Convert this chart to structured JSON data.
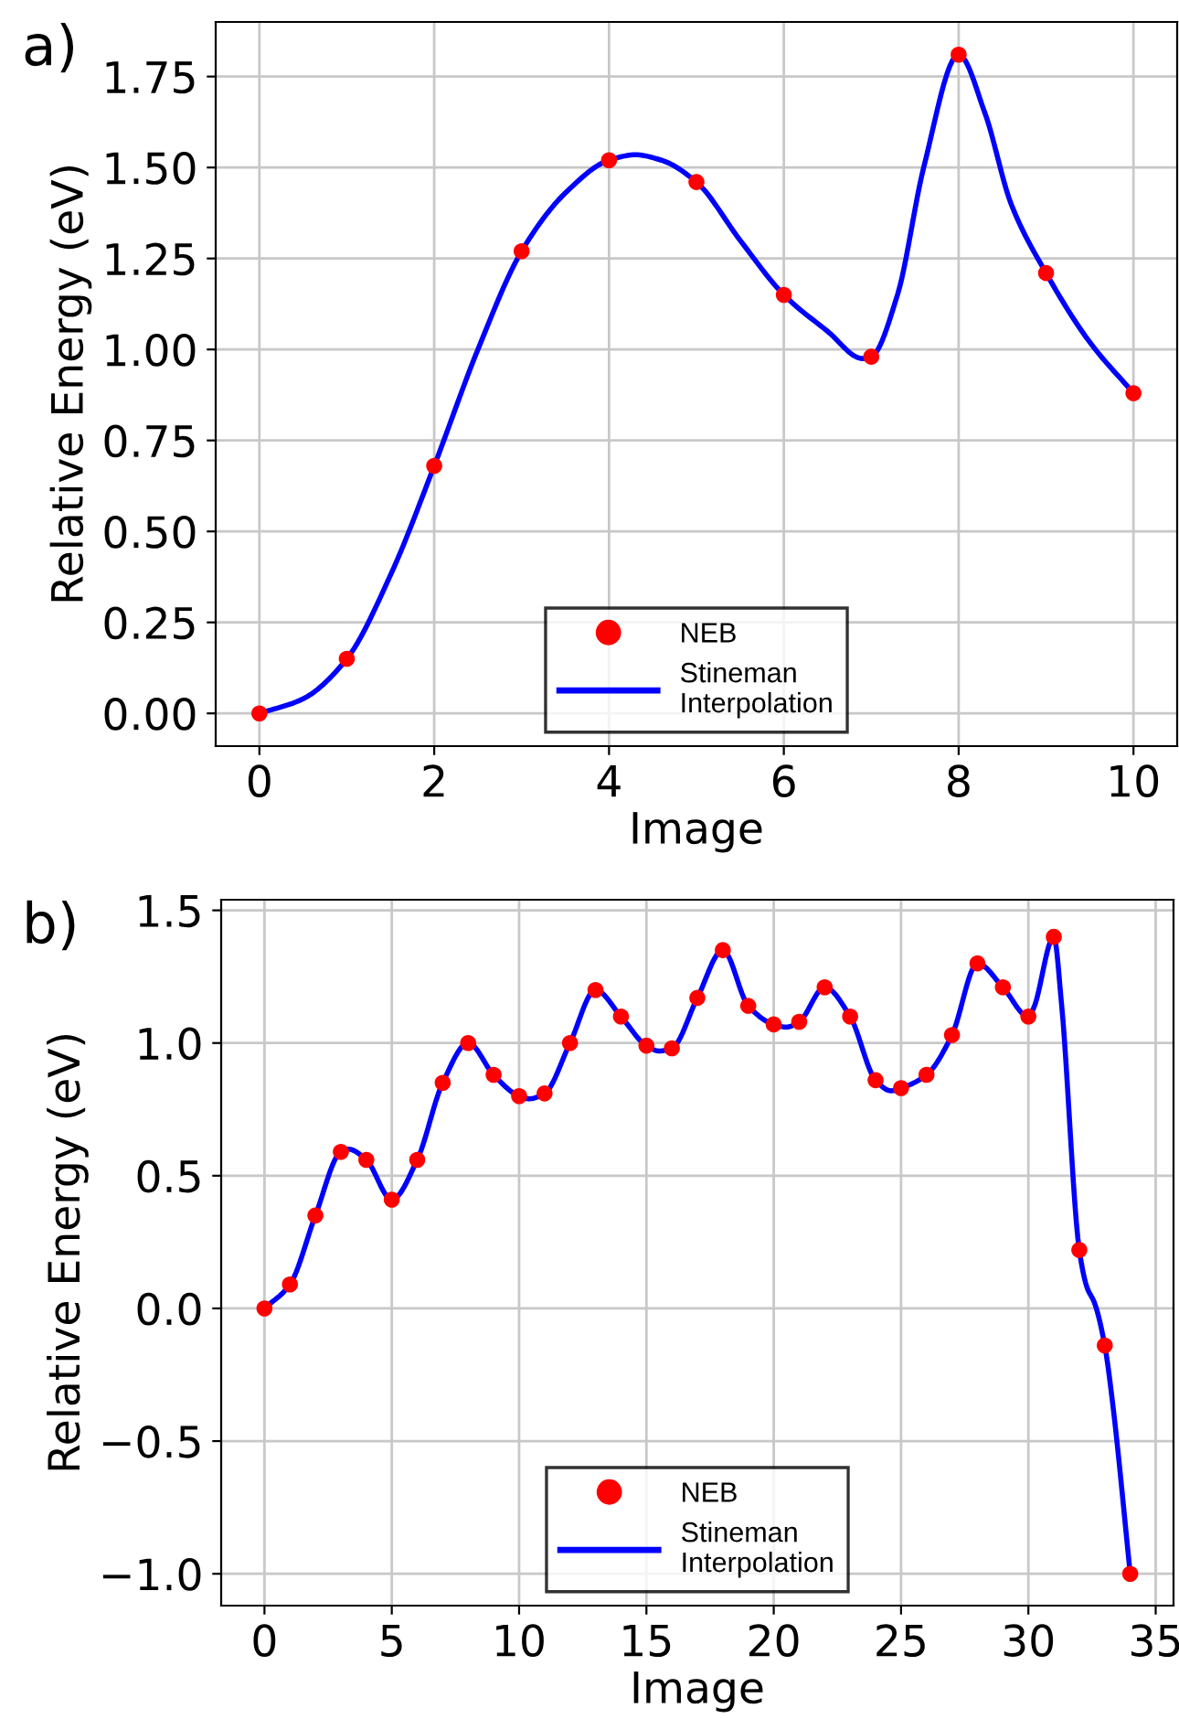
{
  "chart_data": [
    {
      "type": "scatter",
      "annotations": [
        "a)"
      ],
      "xlabel": "Image",
      "ylabel": "Relative Energy (eV)",
      "xlim": [
        -0.5,
        10.5
      ],
      "ylim": [
        -0.09,
        1.9
      ],
      "xticks": [
        0,
        2,
        4,
        6,
        8,
        10
      ],
      "yticks": [
        {
          "value": 0,
          "label": "0.00"
        },
        {
          "value": 0.25,
          "label": "0.25"
        },
        {
          "value": 0.5,
          "label": "0.50"
        },
        {
          "value": 0.75,
          "label": "0.75"
        },
        {
          "value": 1,
          "label": "1.00"
        },
        {
          "value": 1.25,
          "label": "1.25"
        },
        {
          "value": 1.5,
          "label": "1.50"
        },
        {
          "value": 1.75,
          "label": "1.75"
        }
      ],
      "grid": true,
      "legend": "bottom",
      "series": [
        {
          "name": "NEB",
          "marker": "circle",
          "color": "#ff0000",
          "x": [
            0,
            1,
            2,
            3,
            4,
            5,
            6,
            7,
            8,
            9,
            10
          ],
          "values": [
            0,
            0.15,
            0.68,
            1.27,
            1.52,
            1.46,
            1.15,
            0.98,
            1.81,
            1.21,
            0.88
          ]
        },
        {
          "name": "Stineman\nInterpolation",
          "type": "line",
          "color": "#0000ff",
          "line_style": "solid",
          "x": [
            0,
            0.5,
            1,
            1.5,
            2,
            2.5,
            3,
            3.5,
            4,
            4.3,
            4.6,
            5,
            5.5,
            6,
            6.5,
            6.9,
            7,
            7.3,
            7.6,
            8,
            8.3,
            8.6,
            9,
            9.5,
            10
          ],
          "values": [
            0,
            0.04,
            0.15,
            0.38,
            0.68,
            1.0,
            1.27,
            1.43,
            1.52,
            1.535,
            1.52,
            1.46,
            1.3,
            1.15,
            1.05,
            0.975,
            0.98,
            1.15,
            1.5,
            1.81,
            1.65,
            1.4,
            1.21,
            1.02,
            0.88
          ]
        }
      ]
    },
    {
      "type": "scatter",
      "annotations": [
        "b)"
      ],
      "xlabel": "Image",
      "ylabel": "Relative Energy (eV)",
      "xlim": [
        -1.7,
        35.7
      ],
      "ylim": [
        -1.12,
        1.54
      ],
      "xticks": [
        0,
        5,
        10,
        15,
        20,
        25,
        30,
        35
      ],
      "yticks": [
        {
          "value": -1,
          "label": "−1.0"
        },
        {
          "value": -0.5,
          "label": "−0.5"
        },
        {
          "value": 0,
          "label": "0.0"
        },
        {
          "value": 0.5,
          "label": "0.5"
        },
        {
          "value": 1,
          "label": "1.0"
        },
        {
          "value": 1.5,
          "label": "1.5"
        }
      ],
      "grid": true,
      "legend": "bottom",
      "series": [
        {
          "name": "NEB",
          "marker": "circle",
          "color": "#ff0000",
          "x": [
            0,
            1,
            2,
            3,
            4,
            5,
            6,
            7,
            8,
            9,
            10,
            11,
            12,
            13,
            14,
            15,
            16,
            17,
            18,
            19,
            20,
            21,
            22,
            23,
            24,
            25,
            26,
            27,
            28,
            29,
            30,
            31,
            32,
            33,
            34
          ],
          "values": [
            0,
            0.09,
            0.35,
            0.59,
            0.56,
            0.41,
            0.56,
            0.85,
            1.0,
            0.88,
            0.8,
            0.81,
            1.0,
            1.2,
            1.1,
            0.99,
            0.98,
            1.17,
            1.35,
            1.14,
            1.07,
            1.08,
            1.21,
            1.1,
            0.86,
            0.83,
            0.88,
            1.03,
            1.3,
            1.21,
            1.1,
            1.4,
            0.22,
            -0.14,
            -1.0
          ]
        },
        {
          "name": "Stineman\nInterpolation",
          "type": "line",
          "color": "#0000ff",
          "line_style": "solid",
          "x": [
            0,
            1,
            2,
            3,
            3.3,
            4,
            5,
            6,
            7,
            8,
            9,
            10,
            10.4,
            11,
            12,
            13,
            14,
            15,
            15.5,
            16,
            17,
            18,
            19,
            20,
            20.5,
            21,
            22,
            23,
            24,
            24.6,
            25,
            26,
            27,
            28,
            29,
            30,
            30.2,
            31,
            31.3,
            32,
            32.3,
            32.6,
            33,
            33.3,
            34
          ],
          "values": [
            0,
            0.09,
            0.35,
            0.59,
            0.6,
            0.56,
            0.41,
            0.56,
            0.85,
            1.0,
            0.88,
            0.8,
            0.79,
            0.81,
            1.0,
            1.2,
            1.1,
            0.99,
            0.97,
            0.98,
            1.17,
            1.35,
            1.14,
            1.07,
            1.06,
            1.08,
            1.21,
            1.1,
            0.86,
            0.82,
            0.83,
            0.88,
            1.03,
            1.3,
            1.21,
            1.1,
            1.13,
            1.4,
            1.15,
            0.22,
            0.08,
            0.02,
            -0.14,
            -0.35,
            -1.0
          ]
        }
      ]
    }
  ]
}
